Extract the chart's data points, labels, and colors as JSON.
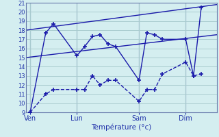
{
  "xlabel": "Température (°c)",
  "bg_color": "#d4eef0",
  "grid_color": "#aaccd0",
  "line_color": "#1a1aaa",
  "ylim": [
    9,
    21
  ],
  "yticks": [
    9,
    10,
    11,
    12,
    13,
    14,
    15,
    16,
    17,
    18,
    19,
    20,
    21
  ],
  "xtick_labels": [
    "Ven",
    "Lun",
    "Sam",
    "Dim"
  ],
  "xtick_positions": [
    0,
    6,
    14,
    20
  ],
  "vlines": [
    0,
    6,
    14,
    20
  ],
  "x_min": -0.5,
  "x_max": 24,
  "series_upper": {
    "x": [
      0,
      2,
      3,
      6,
      7,
      8,
      9,
      10,
      11,
      14,
      15,
      16,
      17,
      20,
      21,
      22
    ],
    "y": [
      9.0,
      17.7,
      18.7,
      15.2,
      16.2,
      17.3,
      17.5,
      16.5,
      16.2,
      12.5,
      17.7,
      17.5,
      17.0,
      17.0,
      13.0,
      20.5
    ]
  },
  "series_lower": {
    "x": [
      0,
      2,
      3,
      6,
      7,
      8,
      9,
      10,
      11,
      14,
      15,
      16,
      17,
      20,
      21,
      22
    ],
    "y": [
      9.0,
      11.0,
      11.5,
      11.5,
      11.5,
      13.0,
      12.0,
      12.5,
      12.5,
      10.2,
      11.5,
      11.5,
      13.2,
      14.5,
      13.0,
      13.2
    ]
  },
  "series_trend1": {
    "x": [
      -0.5,
      24
    ],
    "y": [
      15.0,
      17.5
    ]
  },
  "series_trend2": {
    "x": [
      -0.5,
      24
    ],
    "y": [
      18.0,
      20.8
    ]
  }
}
